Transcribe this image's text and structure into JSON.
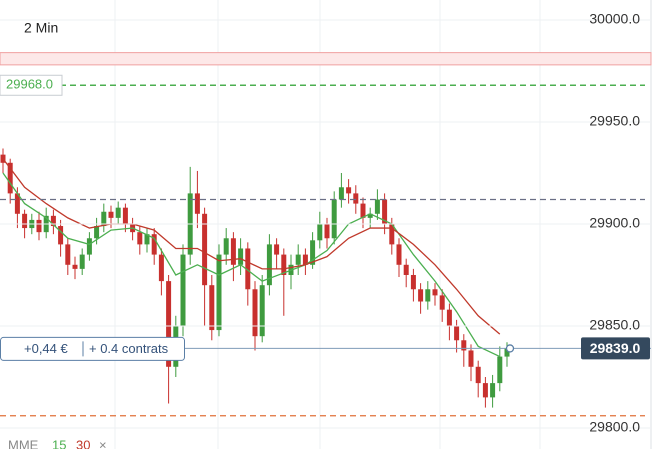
{
  "timeframe": "2 Min",
  "chart_data": {
    "type": "candlestick",
    "indicator": "MME",
    "ylim": [
      29789.7,
      30009.8
    ],
    "yticks": [
      {
        "value": 29800,
        "label": "29800.0"
      },
      {
        "value": 29850,
        "label": "29850.0"
      },
      {
        "value": 29900,
        "label": "29900.0"
      },
      {
        "value": 29950,
        "label": "29950.0"
      },
      {
        "value": 30000,
        "label": "30000.0"
      }
    ],
    "grid": true,
    "up_color": "#3f9b3f",
    "down_color": "#c8302e",
    "open": [
      29934,
      29930,
      29915,
      29905,
      29898,
      29902,
      29896,
      29904,
      29899,
      29890,
      29880,
      29878,
      29885,
      29893,
      29899,
      29906,
      29903,
      29908,
      29900,
      29896,
      29890,
      29895,
      29885,
      29872,
      29830,
      29850,
      29885,
      29915,
      29905,
      29870,
      29848,
      29885,
      29893,
      29880,
      29888,
      29868,
      29845,
      29870,
      29890,
      29885,
      29875,
      29880,
      29885,
      29880,
      29892,
      29900,
      29893,
      29912,
      29918,
      29915,
      29910,
      29903,
      29905,
      29912,
      29900,
      29890,
      29880,
      29875,
      29868,
      29862,
      29868,
      29865,
      29858,
      29850,
      29843,
      29838,
      29830,
      29822,
      29815,
      29822,
      29835
    ],
    "high": [
      29937,
      29932,
      29918,
      29907,
      29905,
      29906,
      29908,
      29907,
      29902,
      29893,
      29884,
      29888,
      29896,
      29903,
      29910,
      29909,
      29911,
      29910,
      29903,
      29899,
      29898,
      29898,
      29888,
      29875,
      29855,
      29890,
      29928,
      29926,
      29908,
      29875,
      29890,
      29898,
      29896,
      29893,
      29891,
      29872,
      29875,
      29895,
      29893,
      29888,
      29885,
      29890,
      29888,
      29896,
      29906,
      29903,
      29916,
      29925,
      29922,
      29919,
      29913,
      29908,
      29917,
      29915,
      29903,
      29893,
      29883,
      29878,
      29871,
      29872,
      29871,
      29868,
      29861,
      29853,
      29846,
      29841,
      29833,
      29825,
      29826,
      29840,
      29842
    ],
    "low": [
      29925,
      29910,
      29898,
      29893,
      29895,
      29892,
      29893,
      29895,
      29884,
      29875,
      29873,
      29875,
      29882,
      29890,
      29896,
      29898,
      29900,
      29896,
      29892,
      29885,
      29886,
      29880,
      29865,
      29812,
      29825,
      29845,
      29880,
      29898,
      29850,
      29843,
      29845,
      29880,
      29872,
      29875,
      29860,
      29838,
      29842,
      29865,
      29878,
      29855,
      29868,
      29875,
      29875,
      29878,
      29888,
      29888,
      29890,
      29908,
      29910,
      29905,
      29898,
      29898,
      29902,
      29895,
      29885,
      29874,
      29869,
      29862,
      29856,
      29858,
      29860,
      29852,
      29843,
      29837,
      29830,
      29823,
      29815,
      29810,
      29810,
      29818,
      29830
    ],
    "close": [
      29930,
      29915,
      29905,
      29898,
      29902,
      29896,
      29904,
      29899,
      29890,
      29880,
      29878,
      29885,
      29893,
      29899,
      29906,
      29903,
      29908,
      29900,
      29896,
      29890,
      29895,
      29885,
      29872,
      29830,
      29850,
      29885,
      29915,
      29905,
      29870,
      29848,
      29885,
      29893,
      29880,
      29888,
      29868,
      29845,
      29870,
      29890,
      29885,
      29875,
      29880,
      29885,
      29880,
      29892,
      29900,
      29893,
      29912,
      29918,
      29915,
      29910,
      29903,
      29905,
      29912,
      29900,
      29890,
      29880,
      29875,
      29868,
      29862,
      29868,
      29865,
      29858,
      29850,
      29843,
      29838,
      29830,
      29822,
      29815,
      29822,
      29835,
      29839
    ],
    "series": [
      {
        "name": "15",
        "color": "#4caf50",
        "x": [
          0,
          3,
          6,
          9,
          12,
          15,
          18,
          21,
          24,
          27,
          30,
          33,
          36,
          39,
          42,
          45,
          48,
          51,
          54,
          57,
          60,
          63,
          66,
          69
        ],
        "values": [
          29925,
          29910,
          29903,
          29893,
          29890,
          29897,
          29898,
          29893,
          29875,
          29880,
          29875,
          29880,
          29872,
          29876,
          29880,
          29887,
          29900,
          29905,
          29900,
          29885,
          29872,
          29857,
          29840,
          29835
        ]
      },
      {
        "name": "30",
        "color": "#c0392b",
        "x": [
          0,
          3,
          6,
          9,
          12,
          15,
          18,
          21,
          24,
          27,
          30,
          33,
          36,
          39,
          42,
          45,
          48,
          51,
          54,
          57,
          60,
          63,
          66,
          69
        ],
        "values": [
          29932,
          29918,
          29910,
          29903,
          29898,
          29900,
          29900,
          29897,
          29888,
          29888,
          29882,
          29883,
          29878,
          29878,
          29880,
          29884,
          29893,
          29898,
          29898,
          29890,
          29880,
          29868,
          29855,
          29846
        ]
      }
    ],
    "zone": [
      29978,
      29984
    ],
    "levels": [
      {
        "value": 29968,
        "label": "29968.0",
        "color": "#4caf50"
      },
      {
        "value": 29912,
        "color": "#6b6f85"
      },
      {
        "value": 29806,
        "color": "#e0703a"
      }
    ],
    "current_price": {
      "value": 29839,
      "label": "29839.0"
    }
  },
  "position": {
    "pnl": "+0,44 €",
    "size": "+ 0.4 contrats"
  },
  "close_button": "×"
}
